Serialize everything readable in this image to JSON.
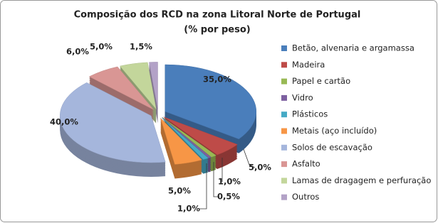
{
  "chart_data": {
    "type": "pie",
    "title": "Composição dos RCD na zona Litoral Norte de Portugal",
    "subtitle": "(% por peso)",
    "categories": [
      "Betão, alvenaria e argamassa",
      "Madeira",
      "Papel e cartão",
      "Vidro",
      "Plásticos",
      "Metais (aço incluído)",
      "Solos de escavação",
      "Asfalto",
      "Lamas de dragagem e perfuração",
      "Outros"
    ],
    "values": [
      35.0,
      5.0,
      1.0,
      0.5,
      1.0,
      5.0,
      40.0,
      6.0,
      5.0,
      1.5
    ],
    "value_labels": [
      "35,0%",
      "5,0%",
      "1,0%",
      "0,5%",
      "1,0%",
      "5,0%",
      "40,0%",
      "6,0%",
      "5,0%",
      "1,5%"
    ],
    "colors": [
      "#4a7ebb",
      "#be4b48",
      "#98b954",
      "#7d60a0",
      "#46aac5",
      "#f79646",
      "#a5b6dc",
      "#d99694",
      "#c3d69b",
      "#b3a2c7"
    ],
    "legend": "right"
  }
}
